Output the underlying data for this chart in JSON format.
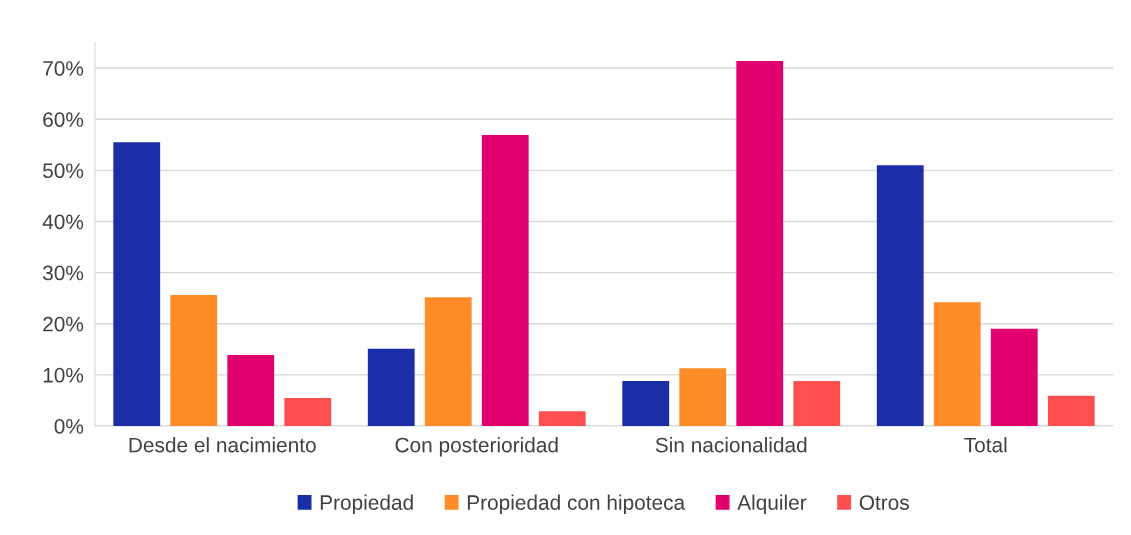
{
  "chart_data": {
    "type": "bar",
    "categories": [
      "Desde el nacimiento",
      "Con posterioridad",
      "Sin nacionalidad",
      "Total"
    ],
    "series": [
      {
        "name": "Propiedad",
        "color": "#1a2ea8",
        "values": [
          55.5,
          15.1,
          8.8,
          51.0
        ]
      },
      {
        "name": "Propiedad con hipoteca",
        "color": "#ff8c28",
        "values": [
          25.6,
          25.2,
          11.3,
          24.2
        ]
      },
      {
        "name": "Alquiler",
        "color": "#e0006e",
        "values": [
          13.9,
          56.9,
          71.4,
          19.0
        ]
      },
      {
        "name": "Otros",
        "color": "#ff5050",
        "values": [
          5.5,
          2.9,
          8.8,
          5.9
        ]
      }
    ],
    "ylim": [
      0,
      75
    ],
    "yticks": [
      {
        "value": 0,
        "label": "0%"
      },
      {
        "value": 10,
        "label": "10%"
      },
      {
        "value": 20,
        "label": "20%"
      },
      {
        "value": 30,
        "label": "30%"
      },
      {
        "value": 40,
        "label": "40%"
      },
      {
        "value": 50,
        "label": "50%"
      },
      {
        "value": 60,
        "label": "60%"
      },
      {
        "value": 70,
        "label": "70%"
      }
    ],
    "grid": "y",
    "legend": "bottom"
  }
}
